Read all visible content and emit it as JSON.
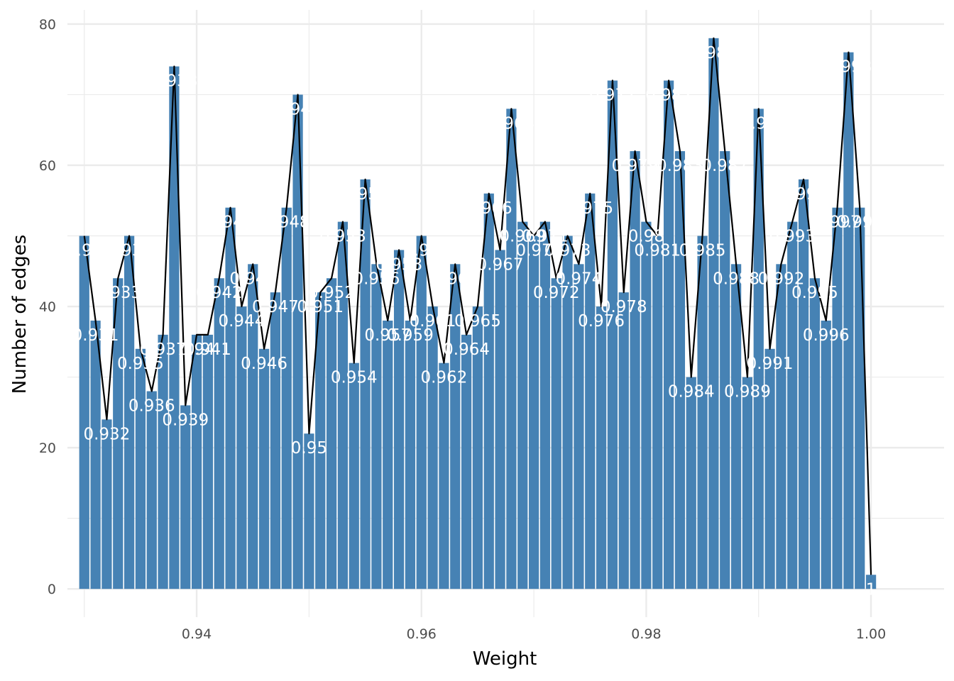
{
  "chart_data": {
    "type": "bar",
    "xlabel": "Weight",
    "ylabel": "Number of edges",
    "xlim": [
      0.9285,
      1.0065
    ],
    "ylim": [
      -4,
      82
    ],
    "x_ticks": [
      0.94,
      0.96,
      0.98,
      1.0
    ],
    "x_tick_labels": [
      "0.94",
      "0.96",
      "0.98",
      "1.00"
    ],
    "y_ticks": [
      0,
      20,
      40,
      60,
      80
    ],
    "y_tick_labels": [
      "0",
      "20",
      "40",
      "60",
      "80"
    ],
    "grid": true,
    "colors": {
      "bar": "#4682B4",
      "line": "#000000",
      "bar_label": "#FFFFFF",
      "grid": "#EBEBEB"
    },
    "bars": [
      {
        "x": 0.93,
        "y": 50,
        "label": "0.93"
      },
      {
        "x": 0.931,
        "y": 38,
        "label": "0.931"
      },
      {
        "x": 0.932,
        "y": 24,
        "label": "0.932"
      },
      {
        "x": 0.933,
        "y": 44,
        "label": "0.933"
      },
      {
        "x": 0.934,
        "y": 50,
        "label": "0.934"
      },
      {
        "x": 0.935,
        "y": 34,
        "label": "0.935"
      },
      {
        "x": 0.936,
        "y": 28,
        "label": "0.936"
      },
      {
        "x": 0.937,
        "y": 36,
        "label": "0.937"
      },
      {
        "x": 0.938,
        "y": 74,
        "label": "0.938"
      },
      {
        "x": 0.939,
        "y": 26,
        "label": "0.939"
      },
      {
        "x": 0.94,
        "y": 36,
        "label": "0.94"
      },
      {
        "x": 0.941,
        "y": 36,
        "label": "0.941"
      },
      {
        "x": 0.942,
        "y": 44,
        "label": "0.942"
      },
      {
        "x": 0.943,
        "y": 54,
        "label": "0.943"
      },
      {
        "x": 0.944,
        "y": 40,
        "label": "0.944"
      },
      {
        "x": 0.945,
        "y": 46,
        "label": "0.945"
      },
      {
        "x": 0.946,
        "y": 34,
        "label": "0.946"
      },
      {
        "x": 0.947,
        "y": 42,
        "label": "0.947"
      },
      {
        "x": 0.948,
        "y": 54,
        "label": "0.948"
      },
      {
        "x": 0.949,
        "y": 70,
        "label": "0.949"
      },
      {
        "x": 0.95,
        "y": 22,
        "label": "0.95"
      },
      {
        "x": 0.951,
        "y": 42,
        "label": "0.951"
      },
      {
        "x": 0.952,
        "y": 44,
        "label": "0.952"
      },
      {
        "x": 0.953,
        "y": 52,
        "label": "0.953"
      },
      {
        "x": 0.954,
        "y": 32,
        "label": "0.954"
      },
      {
        "x": 0.955,
        "y": 58,
        "label": "0.955"
      },
      {
        "x": 0.956,
        "y": 46,
        "label": "0.956"
      },
      {
        "x": 0.957,
        "y": 38,
        "label": "0.957"
      },
      {
        "x": 0.958,
        "y": 48,
        "label": "0.958"
      },
      {
        "x": 0.959,
        "y": 38,
        "label": "0.959"
      },
      {
        "x": 0.96,
        "y": 50,
        "label": "0.96"
      },
      {
        "x": 0.961,
        "y": 40,
        "label": "0.961"
      },
      {
        "x": 0.962,
        "y": 32,
        "label": "0.962"
      },
      {
        "x": 0.963,
        "y": 46,
        "label": "0.963"
      },
      {
        "x": 0.964,
        "y": 36,
        "label": "0.964"
      },
      {
        "x": 0.965,
        "y": 40,
        "label": "0.965"
      },
      {
        "x": 0.966,
        "y": 56,
        "label": "0.966"
      },
      {
        "x": 0.967,
        "y": 48,
        "label": "0.967"
      },
      {
        "x": 0.968,
        "y": 68,
        "label": "0.968"
      },
      {
        "x": 0.969,
        "y": 52,
        "label": "0.969"
      },
      {
        "x": 0.97,
        "y": 50,
        "label": "0.97"
      },
      {
        "x": 0.971,
        "y": 52,
        "label": "0.971"
      },
      {
        "x": 0.972,
        "y": 44,
        "label": "0.972"
      },
      {
        "x": 0.973,
        "y": 50,
        "label": "0.973"
      },
      {
        "x": 0.974,
        "y": 46,
        "label": "0.974"
      },
      {
        "x": 0.975,
        "y": 56,
        "label": "0.975"
      },
      {
        "x": 0.976,
        "y": 40,
        "label": "0.976"
      },
      {
        "x": 0.977,
        "y": 72,
        "label": "0.977"
      },
      {
        "x": 0.978,
        "y": 42,
        "label": "0.978"
      },
      {
        "x": 0.979,
        "y": 62,
        "label": "0.979"
      },
      {
        "x": 0.98,
        "y": 52,
        "label": "0.98"
      },
      {
        "x": 0.981,
        "y": 50,
        "label": "0.981"
      },
      {
        "x": 0.982,
        "y": 72,
        "label": "0.982"
      },
      {
        "x": 0.983,
        "y": 62,
        "label": "0.983"
      },
      {
        "x": 0.984,
        "y": 30,
        "label": "0.984"
      },
      {
        "x": 0.985,
        "y": 50,
        "label": "0.985"
      },
      {
        "x": 0.986,
        "y": 78,
        "label": "0.986"
      },
      {
        "x": 0.987,
        "y": 62,
        "label": "0.987"
      },
      {
        "x": 0.988,
        "y": 46,
        "label": "0.988"
      },
      {
        "x": 0.989,
        "y": 30,
        "label": "0.989"
      },
      {
        "x": 0.99,
        "y": 68,
        "label": "0.99"
      },
      {
        "x": 0.991,
        "y": 34,
        "label": "0.991"
      },
      {
        "x": 0.992,
        "y": 46,
        "label": "0.992"
      },
      {
        "x": 0.993,
        "y": 52,
        "label": "0.993"
      },
      {
        "x": 0.994,
        "y": 58,
        "label": "0.994"
      },
      {
        "x": 0.995,
        "y": 44,
        "label": "0.995"
      },
      {
        "x": 0.996,
        "y": 38,
        "label": "0.996"
      },
      {
        "x": 0.997,
        "y": 54,
        "label": "0.997"
      },
      {
        "x": 0.998,
        "y": 76,
        "label": "0.998"
      },
      {
        "x": 0.999,
        "y": 54,
        "label": "0.999"
      },
      {
        "x": 1.0,
        "y": 2,
        "label": "1"
      }
    ]
  }
}
